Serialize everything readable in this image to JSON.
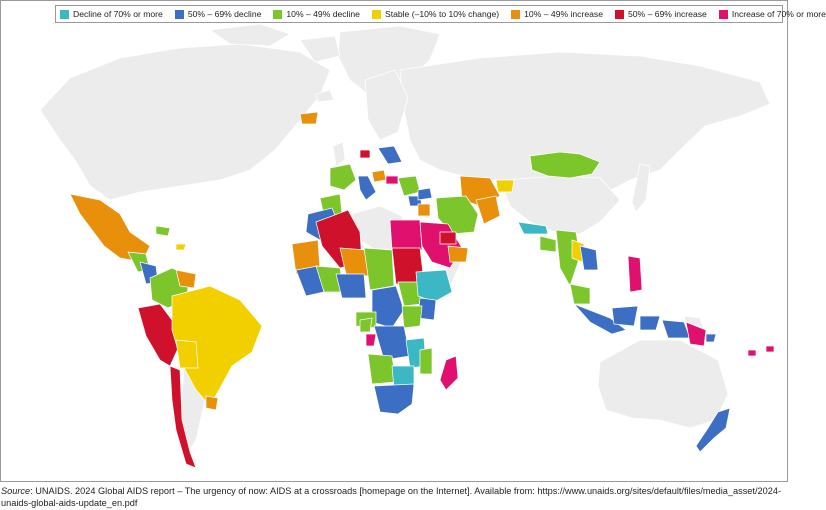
{
  "legend": [
    {
      "label": "Decline of 70% or more",
      "color": "#3bb8c3"
    },
    {
      "label": "50% – 69% decline",
      "color": "#3c6fc4"
    },
    {
      "label": "10% – 49% decline",
      "color": "#7cc62c"
    },
    {
      "label": "Stable (–10% to 10% change)",
      "color": "#f2d000"
    },
    {
      "label": "10% – 49% increase",
      "color": "#e8900c"
    },
    {
      "label": "50% – 69% increase",
      "color": "#d0112b"
    },
    {
      "label": "Increase of 70% or more",
      "color": "#e0106f"
    }
  ],
  "no_data_color": "#ececec",
  "caption": {
    "source_label": "Source",
    "text": ": UNAIDS. 2024 Global AIDS report – The urgency of now: AIDS at a crossroads [homepage on the Internet]. Available from: https://www.unaids.org/sites/default/files/media_asset/2024-unaids-global-aids-update_en.pdf"
  }
}
